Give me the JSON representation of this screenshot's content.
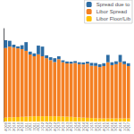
{
  "chart_data": {
    "type": "bar",
    "stacked": true,
    "grid": false,
    "legend": "upper right",
    "tick_labels": "x",
    "categories": [
      "4Q09",
      "1Q10",
      "2Q10",
      "3Q10",
      "4Q10",
      "1Q11",
      "2Q11",
      "3Q11",
      "4Q11",
      "1Q12",
      "2Q12",
      "3Q12",
      "4Q12",
      "1Q13",
      "2Q13",
      "3Q13",
      "4Q13",
      "1Q14",
      "2Q14",
      "3Q14",
      "4Q14",
      "1Q15",
      "2Q15",
      "3Q15",
      "4Q15",
      "1Q16",
      "2Q16",
      "3Q16",
      "4Q16",
      "1Q17",
      "2Q17"
    ],
    "ylim": [
      0,
      4.8
    ],
    "series": [
      {
        "name": "Libor Floor/Lib",
        "color": "#FFC000",
        "values": [
          0.2,
          0.22,
          0.22,
          0.23,
          0.24,
          0.25,
          0.26,
          0.27,
          0.27,
          0.27,
          0.27,
          0.27,
          0.27,
          0.27,
          0.26,
          0.25,
          0.24,
          0.22,
          0.21,
          0.2,
          0.19,
          0.18,
          0.17,
          0.16,
          0.16,
          0.16,
          0.16,
          0.16,
          0.16,
          0.16,
          0.16
        ]
      },
      {
        "name": "Libor Spread",
        "color": "#F48024",
        "values": [
          3.6,
          3.65,
          3.6,
          3.55,
          3.5,
          3.4,
          3.2,
          3.1,
          3.2,
          3.1,
          3.0,
          2.9,
          2.8,
          2.95,
          2.8,
          2.75,
          2.75,
          2.8,
          2.75,
          2.75,
          2.8,
          2.7,
          2.7,
          2.65,
          2.7,
          2.9,
          2.75,
          2.8,
          2.9,
          2.8,
          2.7
        ]
      },
      {
        "name": "Spread due to",
        "color": "#2E6DA4",
        "values": [
          0.4,
          0.3,
          0.15,
          0.1,
          0.2,
          0.45,
          0.15,
          0.15,
          0.45,
          0.5,
          0.15,
          0.15,
          0.2,
          0.15,
          0.1,
          0.1,
          0.1,
          0.1,
          0.1,
          0.1,
          0.1,
          0.15,
          0.15,
          0.15,
          0.15,
          0.38,
          0.15,
          0.15,
          0.38,
          0.15,
          0.15
        ]
      }
    ]
  }
}
